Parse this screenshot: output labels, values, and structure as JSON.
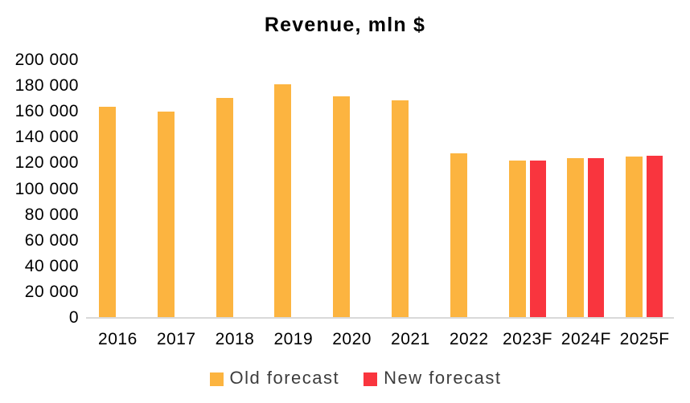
{
  "title": "Revenue, mln $",
  "colors": {
    "old_forecast": "#FCB440",
    "new_forecast": "#F9353E",
    "axis_line": "#D9D9D9",
    "title_text": "#000000",
    "tick_text": "#000000",
    "legend_text": "#3D3D3D",
    "background": "#FFFFFF"
  },
  "y_axis": {
    "min": 0,
    "max": 200000,
    "step": 20000,
    "tick_labels": [
      "200 000",
      "180 000",
      "160 000",
      "140 000",
      "120 000",
      "100 000",
      "80 000",
      "60 000",
      "40 000",
      "20 000",
      "0"
    ]
  },
  "legend": {
    "old_label": "Old forecast",
    "new_label": "New forecast"
  },
  "chart_data": {
    "type": "bar",
    "title": "Revenue, mln $",
    "categories": [
      "2016",
      "2017",
      "2018",
      "2019",
      "2020",
      "2021",
      "2022",
      "2023F",
      "2024F",
      "2025F"
    ],
    "series": [
      {
        "name": "Old forecast",
        "color": "#FCB440",
        "values": [
          164000,
          160000,
          171000,
          181000,
          172000,
          169000,
          128000,
          122000,
          124000,
          125000
        ]
      },
      {
        "name": "New forecast",
        "color": "#F9353E",
        "values": [
          null,
          null,
          null,
          null,
          null,
          null,
          null,
          122000,
          124000,
          126000
        ]
      }
    ],
    "xlabel": "",
    "ylabel": "",
    "ylim": [
      0,
      200000
    ],
    "grid": false,
    "legend_position": "bottom"
  }
}
